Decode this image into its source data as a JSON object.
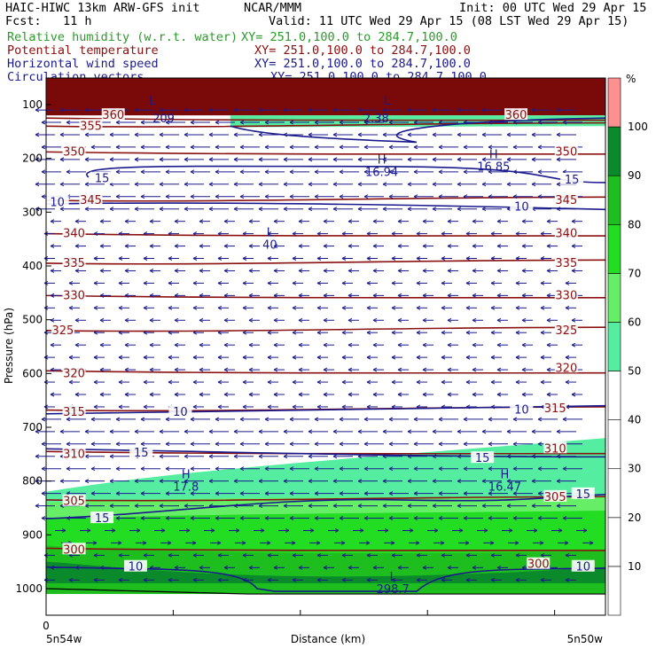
{
  "header": {
    "model": "HAIC-HIWC 13km ARW-GFS init",
    "center": "NCAR/MMM",
    "init": "Init: 00 UTC Wed 29 Apr 15",
    "fcst": "Fcst:   11 h",
    "valid": "Valid: 11 UTC Wed 29 Apr 15 (08 LST Wed 29 Apr 15)"
  },
  "fields": [
    {
      "name": "Relative humidity (w.r.t. water)",
      "xy": "XY= 251.0,100.0 to 284.7,100.0",
      "color": "#2a9a2a"
    },
    {
      "name": "Potential temperature",
      "xy": "XY= 251.0,100.0 to 284.7,100.0",
      "color": "#8b1010"
    },
    {
      "name": "Horizontal wind speed",
      "xy": "XY= 251.0,100.0 to 284.7,100.0",
      "color": "#1a1a8c"
    },
    {
      "name": "Circulation vectors",
      "xy": "XY= 251.0,100.0 to 284.7,100.0",
      "color": "#1a1a8c"
    }
  ],
  "chart_data": {
    "type": "heatmap",
    "xlabel": "Distance (km)",
    "ylabel": "Pressure (hPa)",
    "x_tick_zero": "0",
    "x_left_label": "5n54w",
    "x_right_label": "5n50w",
    "y_ticks": [
      "100",
      "200",
      "300",
      "400",
      "500",
      "600",
      "700",
      "800",
      "900",
      "1000"
    ],
    "colorbar": {
      "unit": "%",
      "levels": [
        10,
        20,
        30,
        40,
        50,
        60,
        70,
        80,
        90,
        100
      ],
      "colors": [
        "#ffffff",
        "#ffffff",
        "#ffffff",
        "#ffffff",
        "#ffffff",
        "#55eea0",
        "#66ee66",
        "#22dd22",
        "#1ebe1e",
        "#0a8a2a",
        "#ff9090"
      ]
    },
    "theta_labels": [
      {
        "text": "355",
        "x": 0.08,
        "p": 140
      },
      {
        "text": "350",
        "x": 0.05,
        "p": 188
      },
      {
        "text": "350",
        "x": 0.93,
        "p": 188
      },
      {
        "text": "345",
        "x": 0.08,
        "p": 278
      },
      {
        "text": "345",
        "x": 0.93,
        "p": 278
      },
      {
        "text": "340",
        "x": 0.05,
        "p": 340
      },
      {
        "text": "340",
        "x": 0.93,
        "p": 340
      },
      {
        "text": "335",
        "x": 0.05,
        "p": 395
      },
      {
        "text": "335",
        "x": 0.93,
        "p": 395
      },
      {
        "text": "330",
        "x": 0.05,
        "p": 455
      },
      {
        "text": "330",
        "x": 0.93,
        "p": 455
      },
      {
        "text": "325",
        "x": 0.03,
        "p": 520
      },
      {
        "text": "325",
        "x": 0.93,
        "p": 520
      },
      {
        "text": "320",
        "x": 0.05,
        "p": 600
      },
      {
        "text": "320",
        "x": 0.93,
        "p": 590
      },
      {
        "text": "315",
        "x": 0.05,
        "p": 672
      },
      {
        "text": "315",
        "x": 0.91,
        "p": 665
      },
      {
        "text": "310",
        "x": 0.05,
        "p": 750
      },
      {
        "text": "310",
        "x": 0.91,
        "p": 740
      },
      {
        "text": "305",
        "x": 0.05,
        "p": 838
      },
      {
        "text": "305",
        "x": 0.91,
        "p": 830
      },
      {
        "text": "300",
        "x": 0.05,
        "p": 928
      },
      {
        "text": "300",
        "x": 0.88,
        "p": 955
      },
      {
        "text": "360",
        "x": 0.12,
        "p": 120
      },
      {
        "text": "360",
        "x": 0.84,
        "p": 120
      }
    ],
    "wind_labels": [
      {
        "text": "15",
        "x": 0.1,
        "p": 238
      },
      {
        "text": "15",
        "x": 0.94,
        "p": 240
      },
      {
        "text": "10",
        "x": 0.02,
        "p": 282
      },
      {
        "text": "10",
        "x": 0.85,
        "p": 290
      },
      {
        "text": "10",
        "x": 0.24,
        "p": 672
      },
      {
        "text": "10",
        "x": 0.85,
        "p": 668
      },
      {
        "text": "15",
        "x": 0.17,
        "p": 748
      },
      {
        "text": "15",
        "x": 0.78,
        "p": 758
      },
      {
        "text": "15",
        "x": 0.1,
        "p": 870
      },
      {
        "text": "15",
        "x": 0.96,
        "p": 825
      },
      {
        "text": "10",
        "x": 0.16,
        "p": 960
      },
      {
        "text": "10",
        "x": 0.96,
        "p": 960
      }
    ],
    "extrema": [
      {
        "type": "H",
        "value": "16.94",
        "x": 0.6,
        "p": 210
      },
      {
        "type": "H",
        "value": "16.85",
        "x": 0.8,
        "p": 200
      },
      {
        "type": "L",
        "value": "40",
        "x": 0.4,
        "p": 345
      },
      {
        "type": "H",
        "value": "17.8",
        "x": 0.25,
        "p": 795
      },
      {
        "type": "H",
        "value": "16.47",
        "x": 0.82,
        "p": 795
      },
      {
        "type": "L",
        "value": "298.7",
        "x": 0.62,
        "p": 985
      },
      {
        "type": "L",
        "value": "",
        "x": 0.19,
        "p": 100
      },
      {
        "type": "L",
        "value": "",
        "x": 0.61,
        "p": 100
      },
      {
        "type": "",
        "value": "209",
        "x": 0.21,
        "p": 110
      },
      {
        "type": "",
        "value": "2.38",
        "x": 0.59,
        "p": 110
      }
    ]
  }
}
